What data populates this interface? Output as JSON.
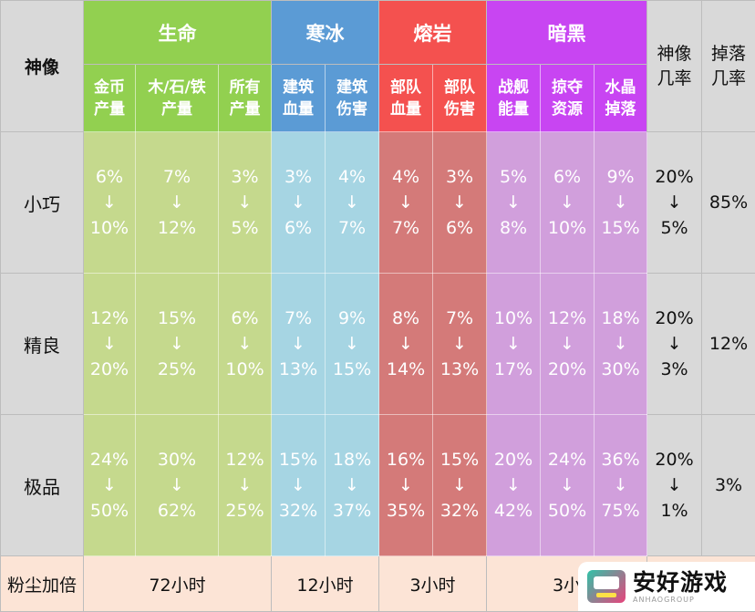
{
  "corner": "神像",
  "groups": [
    {
      "name": "生命",
      "color": "#92d050",
      "cell": "#c5d98d",
      "columns": [
        [
          "金币",
          "产量"
        ],
        [
          "木/石/铁",
          "产量"
        ],
        [
          "所有",
          "产量"
        ]
      ]
    },
    {
      "name": "寒冰",
      "color": "#5b9bd5",
      "cell": "#a6d5e3",
      "columns": [
        [
          "建筑",
          "血量"
        ],
        [
          "建筑",
          "伤害"
        ]
      ]
    },
    {
      "name": "熔岩",
      "color": "#f4514f",
      "cell": "#d47a79",
      "columns": [
        [
          "部队",
          "血量"
        ],
        [
          "部队",
          "伤害"
        ]
      ]
    },
    {
      "name": "暗黑",
      "color": "#c845f2",
      "cell": "#d19fdc",
      "columns": [
        [
          "战舰",
          "能量"
        ],
        [
          "掠夺",
          "资源"
        ],
        [
          "水晶",
          "掉落"
        ]
      ]
    }
  ],
  "rate_headers": [
    [
      "神像",
      "几率"
    ],
    [
      "掉落",
      "几率"
    ]
  ],
  "rows": [
    {
      "label": "小巧",
      "values": [
        [
          "6%",
          "10%"
        ],
        [
          "7%",
          "12%"
        ],
        [
          "3%",
          "5%"
        ],
        [
          "3%",
          "6%"
        ],
        [
          "4%",
          "7%"
        ],
        [
          "4%",
          "7%"
        ],
        [
          "3%",
          "6%"
        ],
        [
          "5%",
          "8%"
        ],
        [
          "6%",
          "10%"
        ],
        [
          "9%",
          "15%"
        ]
      ],
      "statue_rate": [
        "20%",
        "5%"
      ],
      "drop_rate": "85%"
    },
    {
      "label": "精良",
      "values": [
        [
          "12%",
          "20%"
        ],
        [
          "15%",
          "25%"
        ],
        [
          "6%",
          "10%"
        ],
        [
          "7%",
          "13%"
        ],
        [
          "9%",
          "15%"
        ],
        [
          "8%",
          "14%"
        ],
        [
          "7%",
          "13%"
        ],
        [
          "10%",
          "17%"
        ],
        [
          "12%",
          "20%"
        ],
        [
          "18%",
          "30%"
        ]
      ],
      "statue_rate": [
        "20%",
        "3%"
      ],
      "drop_rate": "12%"
    },
    {
      "label": "极品",
      "values": [
        [
          "24%",
          "50%"
        ],
        [
          "30%",
          "62%"
        ],
        [
          "12%",
          "25%"
        ],
        [
          "15%",
          "32%"
        ],
        [
          "18%",
          "37%"
        ],
        [
          "16%",
          "35%"
        ],
        [
          "15%",
          "32%"
        ],
        [
          "20%",
          "42%"
        ],
        [
          "24%",
          "50%"
        ],
        [
          "36%",
          "75%"
        ]
      ],
      "statue_rate": [
        "20%",
        "1%"
      ],
      "drop_rate": "3%"
    }
  ],
  "arrow": "↓",
  "dust": {
    "label": "粉尘加倍",
    "values": [
      "72小时",
      "12小时",
      "3小时",
      "3小"
    ]
  },
  "watermark": {
    "name": "安好游戏",
    "sub": "ANHAOGROUP",
    "icon": "game-console-icon"
  }
}
